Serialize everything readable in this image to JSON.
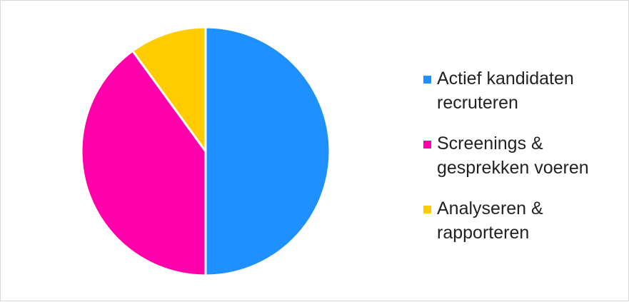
{
  "chart_data": {
    "type": "pie",
    "title": "",
    "slices": [
      {
        "label": "Actief kandidaten recruteren",
        "value": 50,
        "color": "#1e90ff"
      },
      {
        "label": "Screenings & gesprekken voeren",
        "value": 40,
        "color": "#ff00aa"
      },
      {
        "label": "Analyseren & rapporteren",
        "value": 10,
        "color": "#ffcc00"
      }
    ],
    "legend_position": "right",
    "start_angle": "12 o'clock",
    "direction": "clockwise"
  }
}
